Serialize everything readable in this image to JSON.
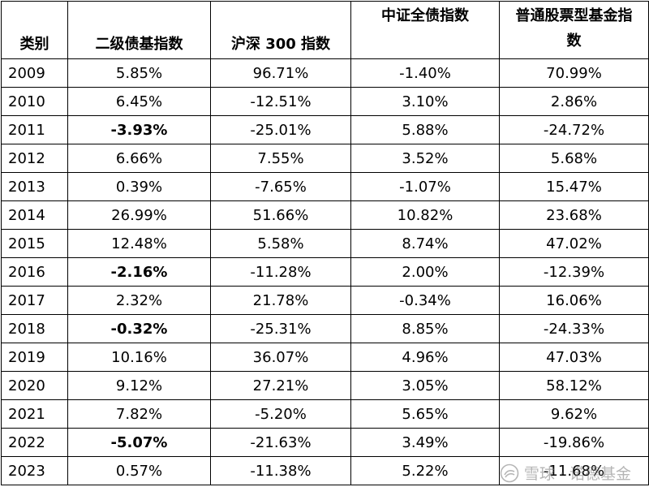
{
  "table": {
    "headers": [
      "类别",
      "二级债基指数",
      "沪深 300 指数",
      "中证全债指数",
      "普通股票型基金指数"
    ],
    "rows": [
      {
        "year": "2009",
        "bond2": "5.85%",
        "hs300": "96.71%",
        "allbond": "-1.40%",
        "stock": "70.99%",
        "bond2_bold": false
      },
      {
        "year": "2010",
        "bond2": "6.45%",
        "hs300": "-12.51%",
        "allbond": "3.10%",
        "stock": "2.86%",
        "bond2_bold": false
      },
      {
        "year": "2011",
        "bond2": "-3.93%",
        "hs300": "-25.01%",
        "allbond": "5.88%",
        "stock": "-24.72%",
        "bond2_bold": true
      },
      {
        "year": "2012",
        "bond2": "6.66%",
        "hs300": "7.55%",
        "allbond": "3.52%",
        "stock": "5.68%",
        "bond2_bold": false
      },
      {
        "year": "2013",
        "bond2": "0.39%",
        "hs300": "-7.65%",
        "allbond": "-1.07%",
        "stock": "15.47%",
        "bond2_bold": false
      },
      {
        "year": "2014",
        "bond2": "26.99%",
        "hs300": "51.66%",
        "allbond": "10.82%",
        "stock": "23.68%",
        "bond2_bold": false
      },
      {
        "year": "2015",
        "bond2": "12.48%",
        "hs300": "5.58%",
        "allbond": "8.74%",
        "stock": "47.02%",
        "bond2_bold": false
      },
      {
        "year": "2016",
        "bond2": "-2.16%",
        "hs300": "-11.28%",
        "allbond": "2.00%",
        "stock": "-12.39%",
        "bond2_bold": true
      },
      {
        "year": "2017",
        "bond2": "2.32%",
        "hs300": "21.78%",
        "allbond": "-0.34%",
        "stock": "16.06%",
        "bond2_bold": false
      },
      {
        "year": "2018",
        "bond2": "-0.32%",
        "hs300": "-25.31%",
        "allbond": "8.85%",
        "stock": "-24.33%",
        "bond2_bold": true
      },
      {
        "year": "2019",
        "bond2": "10.16%",
        "hs300": "36.07%",
        "allbond": "4.96%",
        "stock": "47.03%",
        "bond2_bold": false
      },
      {
        "year": "2020",
        "bond2": "9.12%",
        "hs300": "27.21%",
        "allbond": "3.05%",
        "stock": "58.12%",
        "bond2_bold": false
      },
      {
        "year": "2021",
        "bond2": "7.82%",
        "hs300": "-5.20%",
        "allbond": "5.65%",
        "stock": "9.62%",
        "bond2_bold": false
      },
      {
        "year": "2022",
        "bond2": "-5.07%",
        "hs300": "-21.63%",
        "allbond": "3.49%",
        "stock": "-19.86%",
        "bond2_bold": true
      },
      {
        "year": "2023",
        "bond2": "0.57%",
        "hs300": "-11.38%",
        "allbond": "5.22%",
        "stock": "-11.68%",
        "bond2_bold": false
      }
    ]
  },
  "watermark": {
    "text": "雪球 · 诺德基金",
    "icon": "snowball-logo-icon",
    "color": "#787878"
  }
}
